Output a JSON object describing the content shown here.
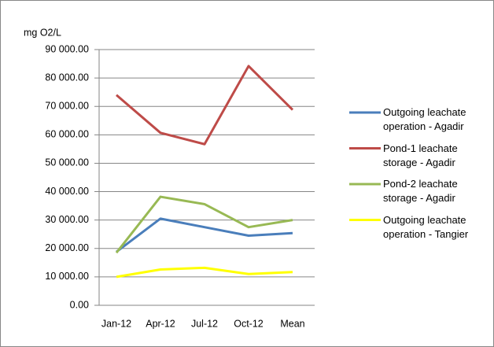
{
  "chart_data": {
    "type": "line",
    "y_label": "mg O2/L",
    "categories": [
      "Jan-12",
      "Apr-12",
      "Jul-12",
      "Oct-12",
      "Mean"
    ],
    "series": [
      {
        "name": "Outgoing leachate operation - Agadir",
        "color": "#4a7ebb",
        "values": [
          18800,
          30500,
          27500,
          24500,
          25400
        ]
      },
      {
        "name": "Pond-1 leachate storage - Agadir",
        "color": "#be4b48",
        "values": [
          74000,
          60700,
          56700,
          84200,
          68800
        ]
      },
      {
        "name": "Pond-2 leachate storage - Agadir",
        "color": "#98b954",
        "values": [
          18500,
          38200,
          35600,
          27500,
          30000
        ]
      },
      {
        "name": "Outgoing leachate operation - Tangier",
        "color": "#ffff00",
        "values": [
          10000,
          12600,
          13200,
          11000,
          11700
        ]
      }
    ],
    "ylim": [
      0,
      90000
    ],
    "yticks": [
      {
        "value": 0,
        "label": "0.00"
      },
      {
        "value": 10000,
        "label": "10 000.00"
      },
      {
        "value": 20000,
        "label": "20 000.00"
      },
      {
        "value": 30000,
        "label": "30 000.00"
      },
      {
        "value": 40000,
        "label": "40 000.00"
      },
      {
        "value": 50000,
        "label": "50 000.00"
      },
      {
        "value": 60000,
        "label": "60 000.00"
      },
      {
        "value": 70000,
        "label": "70 000.00"
      },
      {
        "value": 80000,
        "label": "80 000.00"
      },
      {
        "value": 90000,
        "label": "90 000.00"
      }
    ],
    "grid": true,
    "legend": "right"
  }
}
